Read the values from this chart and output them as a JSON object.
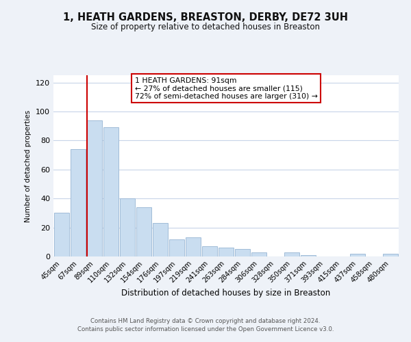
{
  "title": "1, HEATH GARDENS, BREASTON, DERBY, DE72 3UH",
  "subtitle": "Size of property relative to detached houses in Breaston",
  "xlabel": "Distribution of detached houses by size in Breaston",
  "ylabel": "Number of detached properties",
  "bar_labels": [
    "45sqm",
    "67sqm",
    "89sqm",
    "110sqm",
    "132sqm",
    "154sqm",
    "176sqm",
    "197sqm",
    "219sqm",
    "241sqm",
    "263sqm",
    "284sqm",
    "306sqm",
    "328sqm",
    "350sqm",
    "371sqm",
    "393sqm",
    "415sqm",
    "437sqm",
    "458sqm",
    "480sqm"
  ],
  "bar_values": [
    30,
    74,
    94,
    89,
    40,
    34,
    23,
    12,
    13,
    7,
    6,
    5,
    3,
    0,
    3,
    1,
    0,
    0,
    2,
    0,
    2
  ],
  "bar_color": "#c9ddf0",
  "bar_edge_color": "#a0bcd8",
  "highlight_bar_index": 2,
  "annotation_text": "1 HEATH GARDENS: 91sqm\n← 27% of detached houses are smaller (115)\n72% of semi-detached houses are larger (310) →",
  "annotation_box_color": "#ffffff",
  "annotation_box_edge": "#cc0000",
  "red_line_bar_index": 2,
  "ylim": [
    0,
    125
  ],
  "yticks": [
    0,
    20,
    40,
    60,
    80,
    100,
    120
  ],
  "footer1": "Contains HM Land Registry data © Crown copyright and database right 2024.",
  "footer2": "Contains public sector information licensed under the Open Government Licence v3.0.",
  "bg_color": "#eef2f8",
  "plot_bg_color": "#ffffff",
  "grid_color": "#c8d4e8"
}
